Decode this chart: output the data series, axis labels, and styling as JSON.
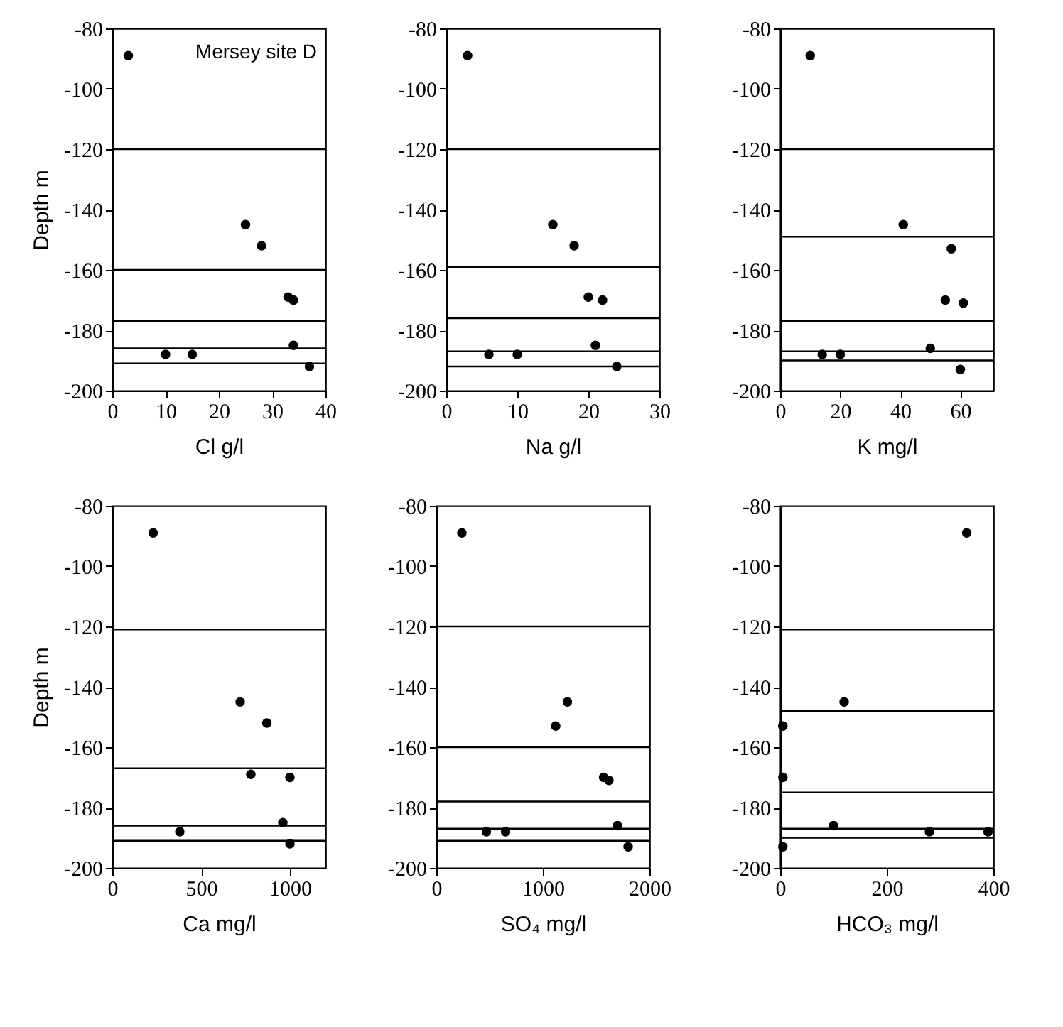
{
  "chart_data": [
    {
      "type": "scatter",
      "xlabel": "Cl  g/l",
      "ylabel": "Depth m",
      "annotations": [
        "Mersey site D"
      ],
      "x": [
        3,
        25,
        28,
        33,
        34,
        34,
        10,
        15,
        37
      ],
      "values": [
        -89,
        -145,
        -152,
        -169,
        -170,
        -185,
        -188,
        -188,
        -192
      ],
      "color": "#000000",
      "marker": "circle",
      "xlim": [
        0,
        40
      ],
      "xticks": [
        0,
        10,
        20,
        30,
        40
      ],
      "ylim": [
        -200,
        -80
      ],
      "yticks": [
        -80,
        -100,
        -120,
        -140,
        -160,
        -180,
        -200
      ],
      "grid": false,
      "ref_lines": [
        {
          "axis": "y",
          "value": -120,
          "color": "#000000"
        },
        {
          "axis": "y",
          "value": -160,
          "color": "#000000"
        },
        {
          "axis": "y",
          "value": -177,
          "color": "#000000"
        },
        {
          "axis": "y",
          "value": -186,
          "color": "#000000"
        },
        {
          "axis": "y",
          "value": -191,
          "color": "#000000"
        }
      ]
    },
    {
      "type": "scatter",
      "xlabel": "Na  g/l",
      "x": [
        3,
        15,
        18,
        20,
        22,
        21,
        6,
        10,
        24
      ],
      "values": [
        -89,
        -145,
        -152,
        -169,
        -170,
        -185,
        -188,
        -188,
        -192
      ],
      "color": "#000000",
      "marker": "circle",
      "xlim": [
        0,
        30
      ],
      "xticks": [
        0,
        10,
        20,
        30
      ],
      "ylim": [
        -200,
        -80
      ],
      "yticks": [
        -80,
        -100,
        -120,
        -140,
        -160,
        -180,
        -200
      ],
      "grid": false,
      "ref_lines": [
        {
          "axis": "y",
          "value": -120,
          "color": "#000000"
        },
        {
          "axis": "y",
          "value": -159,
          "color": "#000000"
        },
        {
          "axis": "y",
          "value": -176,
          "color": "#000000"
        },
        {
          "axis": "y",
          "value": -187,
          "color": "#000000"
        },
        {
          "axis": "y",
          "value": -192,
          "color": "#000000"
        }
      ]
    },
    {
      "type": "scatter",
      "xlabel": "K  mg/l",
      "x": [
        10,
        41,
        57,
        55,
        61,
        50,
        14,
        20,
        60
      ],
      "values": [
        -89,
        -145,
        -153,
        -170,
        -171,
        -186,
        -188,
        -188,
        -193
      ],
      "color": "#000000",
      "marker": "circle",
      "xlim": [
        0,
        71
      ],
      "xticks": [
        0,
        20,
        40,
        60
      ],
      "ylim": [
        -200,
        -80
      ],
      "yticks": [
        -80,
        -100,
        -120,
        -140,
        -160,
        -180,
        -200
      ],
      "grid": false,
      "ref_lines": [
        {
          "axis": "y",
          "value": -120,
          "color": "#000000"
        },
        {
          "axis": "y",
          "value": -149,
          "color": "#000000"
        },
        {
          "axis": "y",
          "value": -177,
          "color": "#000000"
        },
        {
          "axis": "y",
          "value": -187,
          "color": "#000000"
        },
        {
          "axis": "y",
          "value": -190,
          "color": "#000000"
        }
      ]
    },
    {
      "type": "scatter",
      "xlabel": "Ca mg/l",
      "ylabel": "Depth m",
      "x": [
        230,
        720,
        870,
        780,
        1000,
        960,
        380,
        1000
      ],
      "values": [
        -89,
        -145,
        -152,
        -169,
        -170,
        -185,
        -188,
        -192
      ],
      "color": "#000000",
      "marker": "circle",
      "xlim": [
        0,
        1200
      ],
      "xticks": [
        0,
        500,
        1000
      ],
      "ylim": [
        -200,
        -80
      ],
      "yticks": [
        -80,
        -100,
        -120,
        -140,
        -160,
        -180,
        -200
      ],
      "grid": false,
      "ref_lines": [
        {
          "axis": "y",
          "value": -121,
          "color": "#000000"
        },
        {
          "axis": "y",
          "value": -167,
          "color": "#000000"
        },
        {
          "axis": "y",
          "value": -186,
          "color": "#000000"
        },
        {
          "axis": "y",
          "value": -191,
          "color": "#000000"
        }
      ]
    },
    {
      "type": "scatter",
      "xlabel": "SO₄ mg/l",
      "x": [
        240,
        1230,
        1120,
        1570,
        1620,
        1700,
        470,
        650,
        1800
      ],
      "values": [
        -89,
        -145,
        -153,
        -170,
        -171,
        -186,
        -188,
        -188,
        -193
      ],
      "color": "#000000",
      "marker": "circle",
      "xlim": [
        0,
        2000
      ],
      "xticks": [
        0,
        1000,
        2000
      ],
      "ylim": [
        -200,
        -80
      ],
      "yticks": [
        -80,
        -100,
        -120,
        -140,
        -160,
        -180,
        -200
      ],
      "grid": false,
      "ref_lines": [
        {
          "axis": "y",
          "value": -120,
          "color": "#000000"
        },
        {
          "axis": "y",
          "value": -160,
          "color": "#000000"
        },
        {
          "axis": "y",
          "value": -178,
          "color": "#000000"
        },
        {
          "axis": "y",
          "value": -187,
          "color": "#000000"
        },
        {
          "axis": "y",
          "value": -191,
          "color": "#000000"
        }
      ]
    },
    {
      "type": "scatter",
      "xlabel": "HCO₃ mg/l",
      "x": [
        350,
        120,
        5,
        5,
        100,
        280,
        390,
        5
      ],
      "values": [
        -89,
        -145,
        -153,
        -170,
        -186,
        -188,
        -188,
        -193
      ],
      "color": "#000000",
      "marker": "circle",
      "xlim": [
        0,
        400
      ],
      "xticks": [
        0,
        200,
        400
      ],
      "ylim": [
        -200,
        -80
      ],
      "yticks": [
        -80,
        -100,
        -120,
        -140,
        -160,
        -180,
        -200
      ],
      "grid": false,
      "ref_lines": [
        {
          "axis": "y",
          "value": -121,
          "color": "#000000"
        },
        {
          "axis": "y",
          "value": -148,
          "color": "#000000"
        },
        {
          "axis": "y",
          "value": -175,
          "color": "#000000"
        },
        {
          "axis": "y",
          "value": -187,
          "color": "#000000"
        },
        {
          "axis": "y",
          "value": -190,
          "color": "#000000"
        }
      ]
    }
  ]
}
